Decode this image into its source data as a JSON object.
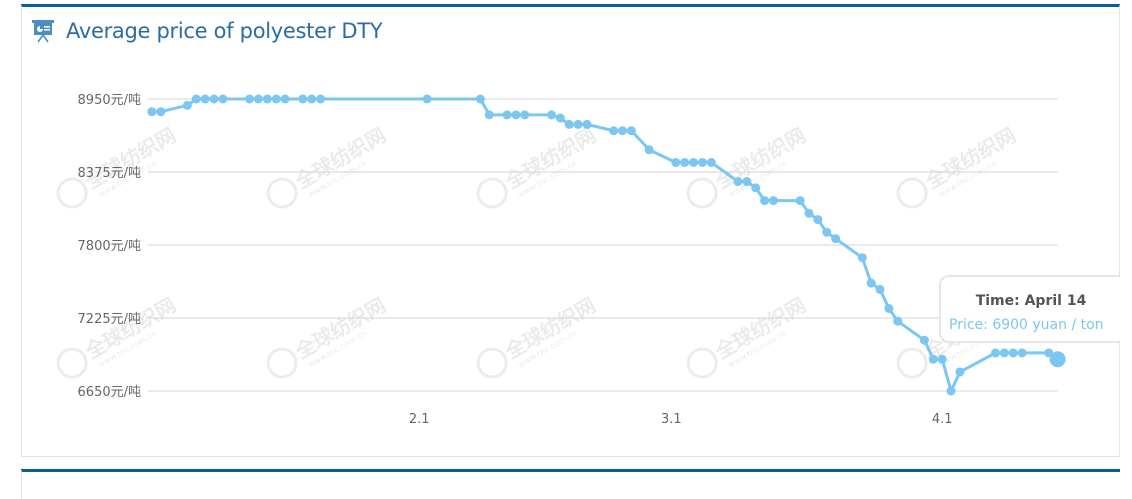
{
  "panel": {
    "title": "Average price of polyester DTY",
    "icon": "presentation-board-icon",
    "accent_color": "#0b5e96",
    "title_color": "#2a6ca3"
  },
  "watermark": {
    "text": "全球纺织网",
    "url_text": "www.tnc.com.cn"
  },
  "tooltip": {
    "time_label": "Time: April 14",
    "price_label": "Price: 6900 yuan / ton"
  },
  "chart_data": {
    "type": "line",
    "title": "Average price of polyester DTY",
    "xlabel": "",
    "ylabel": "元/吨",
    "y_unit": "元/吨",
    "ylim": [
      6650,
      8950
    ],
    "yticks": [
      8950,
      8375,
      7800,
      7225,
      6650
    ],
    "ytick_labels": [
      "8950元/吨",
      "8375元/吨",
      "7800元/吨",
      "7225元/吨",
      "6650元/吨"
    ],
    "xtick_labels": [
      "2.1",
      "3.1",
      "4.1"
    ],
    "grid": true,
    "legend": null,
    "line_color": "#7cc6f2",
    "highlighted_point": {
      "x": "April 14",
      "y": 6900
    },
    "x": [
      "1.2",
      "1.3",
      "1.6",
      "1.7",
      "1.8",
      "1.9",
      "1.10",
      "1.13",
      "1.14",
      "1.15",
      "1.16",
      "1.17",
      "1.19",
      "1.20",
      "1.21",
      "2.2",
      "2.8",
      "2.9",
      "2.11",
      "2.12",
      "2.13",
      "2.16",
      "2.17",
      "2.18",
      "2.19",
      "2.20",
      "2.23",
      "2.24",
      "2.25",
      "2.27",
      "3.2",
      "3.3",
      "3.4",
      "3.5",
      "3.6",
      "3.9",
      "3.10",
      "3.11",
      "3.12",
      "3.13",
      "3.16",
      "3.17",
      "3.18",
      "3.19",
      "3.20",
      "3.23",
      "3.24",
      "3.25",
      "3.26",
      "3.27",
      "3.30",
      "3.31",
      "4.1",
      "4.2",
      "4.3",
      "4.7",
      "4.8",
      "4.9",
      "4.10",
      "4.13",
      "4.14"
    ],
    "day_index": [
      1,
      2,
      5,
      6,
      7,
      8,
      9,
      12,
      13,
      14,
      15,
      16,
      18,
      19,
      20,
      32,
      38,
      39,
      41,
      42,
      43,
      46,
      47,
      48,
      49,
      50,
      53,
      54,
      55,
      57,
      60,
      61,
      62,
      63,
      64,
      67,
      68,
      69,
      70,
      71,
      74,
      75,
      76,
      77,
      78,
      81,
      82,
      83,
      84,
      85,
      88,
      89,
      90,
      91,
      92,
      96,
      97,
      98,
      99,
      102,
      103
    ],
    "values": [
      8850,
      8850,
      8900,
      8950,
      8950,
      8950,
      8950,
      8950,
      8950,
      8950,
      8950,
      8950,
      8950,
      8950,
      8950,
      8950,
      8950,
      8825,
      8825,
      8825,
      8825,
      8825,
      8800,
      8750,
      8750,
      8750,
      8700,
      8700,
      8700,
      8550,
      8450,
      8450,
      8450,
      8450,
      8450,
      8300,
      8300,
      8250,
      8150,
      8150,
      8150,
      8050,
      8000,
      7900,
      7850,
      7700,
      7500,
      7450,
      7300,
      7200,
      7050,
      6900,
      6900,
      6650,
      6800,
      6950,
      6950,
      6950,
      6950,
      6950,
      6900
    ]
  }
}
